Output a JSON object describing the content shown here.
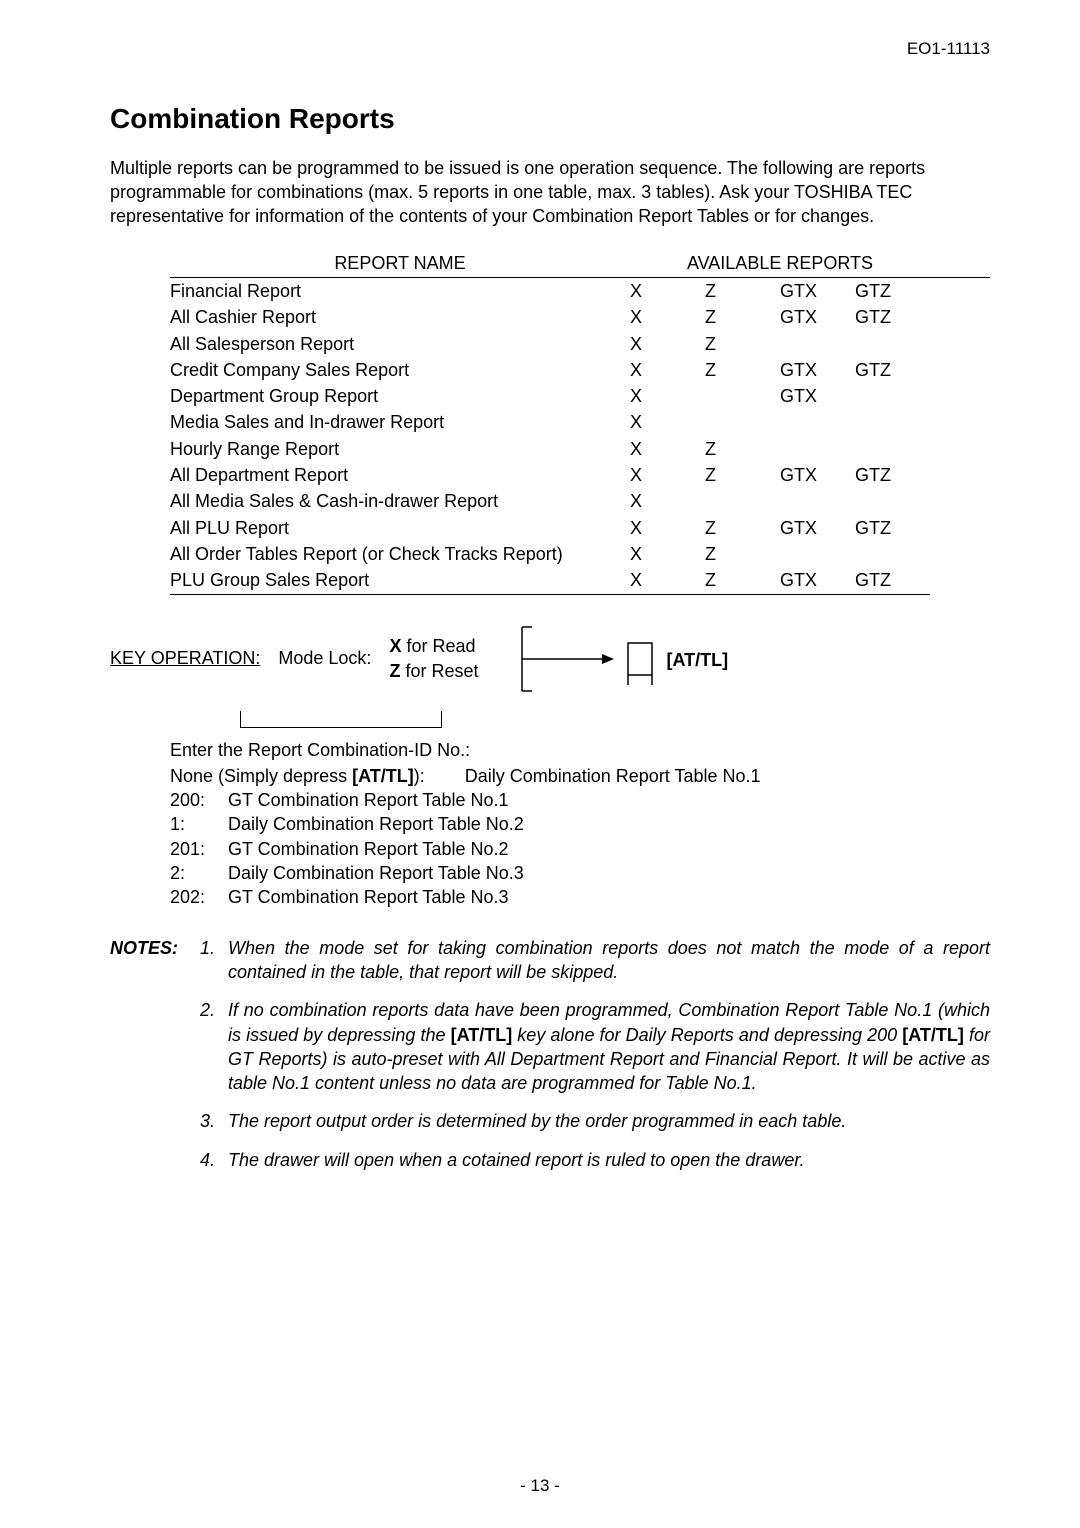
{
  "doc_id": "EO1-11113",
  "title": "Combination Reports",
  "intro": "Multiple reports can be programmed to be issued is one operation sequence. The following are reports programmable for combinations (max. 5 reports in one table, max. 3 tables). Ask your TOSHIBA TEC representative for information of the contents of your Combination Report Tables or for changes.",
  "table": {
    "head_name": "REPORT NAME",
    "head_avail": "AVAILABLE REPORTS",
    "rows": [
      {
        "name": "Financial Report",
        "c1": "X",
        "c2": "Z",
        "c3": "GTX",
        "c4": "GTZ"
      },
      {
        "name": "All Cashier Report",
        "c1": "X",
        "c2": "Z",
        "c3": "GTX",
        "c4": "GTZ"
      },
      {
        "name": "All Salesperson Report",
        "c1": "X",
        "c2": "Z",
        "c3": "",
        "c4": ""
      },
      {
        "name": "Credit Company Sales Report",
        "c1": "X",
        "c2": "Z",
        "c3": "GTX",
        "c4": "GTZ"
      },
      {
        "name": "Department Group Report",
        "c1": "X",
        "c2": "",
        "c3": "GTX",
        "c4": ""
      },
      {
        "name": "Media Sales and In-drawer Report",
        "c1": "X",
        "c2": "",
        "c3": "",
        "c4": ""
      },
      {
        "name": "Hourly Range Report",
        "c1": "X",
        "c2": "Z",
        "c3": "",
        "c4": ""
      },
      {
        "name": "All Department Report",
        "c1": "X",
        "c2": "Z",
        "c3": "GTX",
        "c4": "GTZ"
      },
      {
        "name": "All Media Sales & Cash-in-drawer Report",
        "c1": "X",
        "c2": "",
        "c3": "",
        "c4": ""
      },
      {
        "name": "All PLU Report",
        "c1": "X",
        "c2": "Z",
        "c3": "GTX",
        "c4": "GTZ"
      },
      {
        "name": "All Order Tables Report (or Check Tracks Report)",
        "c1": "X",
        "c2": "Z",
        "c3": "",
        "c4": ""
      },
      {
        "name": "PLU Group Sales Report",
        "c1": "X",
        "c2": "Z",
        "c3": "GTX",
        "c4": "GTZ"
      }
    ]
  },
  "keyop": {
    "label": "KEY OPERATION:",
    "mode": "Mode Lock:",
    "x_line": "X",
    "x_suffix": " for Read",
    "z_line": "Z",
    "z_suffix": " for Reset",
    "at_tl": "[AT/TL]"
  },
  "enter": {
    "heading": "Enter the Report Combination-ID No.:",
    "none_prefix": "None (Simply depress ",
    "none_key": "[AT/TL]",
    "none_suffix": "):",
    "none_desc": "Daily Combination Report Table No.1",
    "items": [
      {
        "k": "200:",
        "v": "GT Combination Report Table No.1"
      },
      {
        "k": "1:",
        "v": "Daily Combination Report Table No.2"
      },
      {
        "k": "201:",
        "v": "GT Combination Report Table No.2"
      },
      {
        "k": "2:",
        "v": "Daily Combination Report Table No.3"
      },
      {
        "k": "202:",
        "v": "GT Combination Report Table No.3"
      }
    ]
  },
  "notes": {
    "label": "NOTES:",
    "items": [
      {
        "n": "1.",
        "pre": "When the mode set for taking combination reports does not match the mode of a report contained in the table, that report will be skipped.",
        "key1": "",
        "mid": "",
        "key2": "",
        "post": ""
      },
      {
        "n": "2.",
        "pre": "If no combination reports data have been programmed, Combination Report Table No.1 (which is issued by depressing the ",
        "key1": "[AT/TL]",
        "mid": " key alone for Daily Reports and depressing 200 ",
        "key2": "[AT/TL]",
        "post": " for GT Reports) is auto-preset with All Department Report and Financial Report.  It will be active as table No.1 content unless no data are programmed for Table No.1."
      },
      {
        "n": "3.",
        "pre": "The report output order is determined by the order programmed in each table.",
        "key1": "",
        "mid": "",
        "key2": "",
        "post": ""
      },
      {
        "n": "4.",
        "pre": "The drawer will open when a cotained report is ruled to open the drawer.",
        "key1": "",
        "mid": "",
        "key2": "",
        "post": ""
      }
    ]
  },
  "page_number": "- 13 -"
}
